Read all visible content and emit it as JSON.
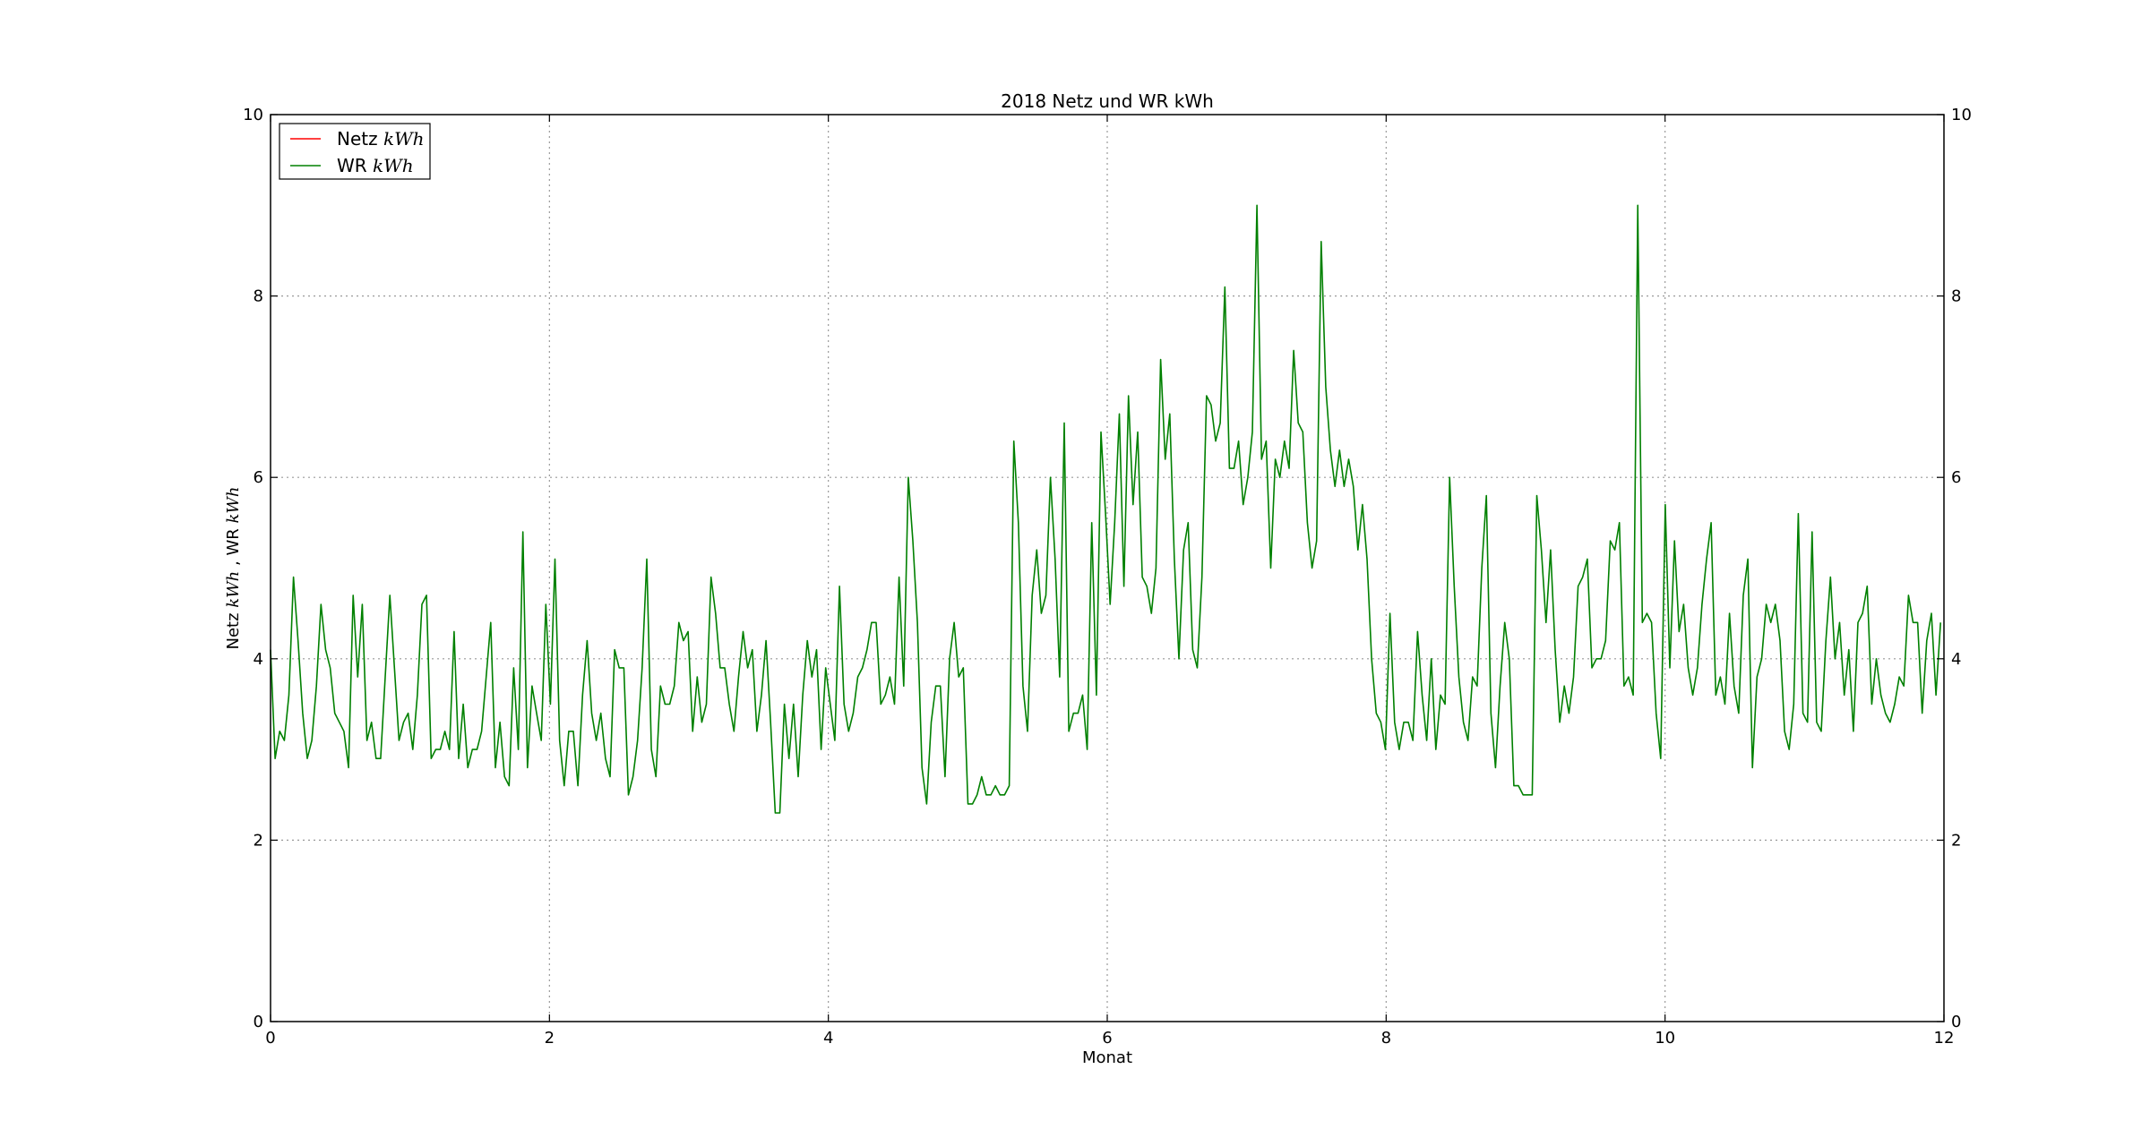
{
  "chart_data": {
    "type": "line",
    "title": "2018 Netz und WR kWh",
    "xlabel": "Monat",
    "ylabel": "Netz kWh , WR kWh",
    "ylabel_parts": {
      "a": "Netz ",
      "am": "kWh",
      "b": " , WR ",
      "bm": "kWh"
    },
    "xlim": [
      0,
      12
    ],
    "ylim": [
      0,
      10
    ],
    "xticks": [
      "0",
      "2",
      "4",
      "6",
      "8",
      "10",
      "12"
    ],
    "yticks": [
      "0",
      "2",
      "4",
      "6",
      "8",
      "10"
    ],
    "grid": true,
    "legend_position": "top-left",
    "series": [
      {
        "name": "Netz kWh",
        "label_text": "Netz ",
        "label_math": "kWh",
        "color": "#ff0000",
        "x": [],
        "y": []
      },
      {
        "name": "WR kWh",
        "label_text": "WR ",
        "label_math": "kWh",
        "color": "#008000",
        "x_start": 0,
        "x_step": 0.0329,
        "y": [
          4.1,
          2.9,
          3.2,
          3.1,
          3.6,
          4.9,
          4.2,
          3.4,
          2.9,
          3.1,
          3.7,
          4.6,
          4.1,
          3.9,
          3.4,
          3.3,
          3.2,
          2.8,
          4.7,
          3.8,
          4.6,
          3.1,
          3.3,
          2.9,
          2.9,
          3.8,
          4.7,
          3.9,
          3.1,
          3.3,
          3.4,
          3.0,
          3.6,
          4.6,
          4.7,
          2.9,
          3.0,
          3.0,
          3.2,
          3.0,
          4.3,
          2.9,
          3.5,
          2.8,
          3.0,
          3.0,
          3.2,
          3.8,
          4.4,
          2.8,
          3.3,
          2.7,
          2.6,
          3.9,
          3.0,
          5.4,
          2.8,
          3.7,
          3.4,
          3.1,
          4.6,
          3.5,
          5.1,
          3.1,
          2.6,
          3.2,
          3.2,
          2.6,
          3.6,
          4.2,
          3.4,
          3.1,
          3.4,
          2.9,
          2.7,
          4.1,
          3.9,
          3.9,
          2.5,
          2.7,
          3.1,
          3.9,
          5.1,
          3.0,
          2.7,
          3.7,
          3.5,
          3.5,
          3.7,
          4.4,
          4.2,
          4.3,
          3.2,
          3.8,
          3.3,
          3.5,
          4.9,
          4.5,
          3.9,
          3.9,
          3.5,
          3.2,
          3.8,
          4.3,
          3.9,
          4.1,
          3.2,
          3.6,
          4.2,
          3.3,
          2.3,
          2.3,
          3.5,
          2.9,
          3.5,
          2.7,
          3.6,
          4.2,
          3.8,
          4.1,
          3.0,
          3.9,
          3.5,
          3.1,
          4.8,
          3.5,
          3.2,
          3.4,
          3.8,
          3.9,
          4.1,
          4.4,
          4.4,
          3.5,
          3.6,
          3.8,
          3.5,
          4.9,
          3.7,
          6.0,
          5.3,
          4.4,
          2.8,
          2.4,
          3.3,
          3.7,
          3.7,
          2.7,
          4.0,
          4.4,
          3.8,
          3.9,
          2.4,
          2.4,
          2.5,
          2.7,
          2.5,
          2.5,
          2.6,
          2.5,
          2.5,
          2.6,
          6.4,
          5.5,
          3.7,
          3.2,
          4.7,
          5.2,
          4.5,
          4.7,
          6.0,
          5.1,
          3.8,
          6.6,
          3.2,
          3.4,
          3.4,
          3.6,
          3.0,
          5.5,
          3.6,
          6.5,
          5.6,
          4.6,
          5.5,
          6.7,
          4.8,
          6.9,
          5.7,
          6.5,
          4.9,
          4.8,
          4.5,
          5.0,
          7.3,
          6.2,
          6.7,
          5.1,
          4.0,
          5.2,
          5.5,
          4.1,
          3.9,
          4.9,
          6.9,
          6.8,
          6.4,
          6.6,
          8.1,
          6.1,
          6.1,
          6.4,
          5.7,
          6.0,
          6.5,
          9.0,
          6.2,
          6.4,
          5.0,
          6.2,
          6.0,
          6.4,
          6.1,
          7.4,
          6.6,
          6.5,
          5.5,
          5.0,
          5.3,
          8.6,
          7.0,
          6.3,
          5.9,
          6.3,
          5.9,
          6.2,
          5.9,
          5.2,
          5.7,
          5.1,
          4.0,
          3.4,
          3.3,
          3.0,
          4.5,
          3.3,
          3.0,
          3.3,
          3.3,
          3.1,
          4.3,
          3.6,
          3.1,
          4.0,
          3.0,
          3.6,
          3.5,
          6.0,
          4.8,
          3.8,
          3.3,
          3.1,
          3.8,
          3.7,
          5.0,
          5.8,
          3.4,
          2.8,
          3.7,
          4.4,
          4.0,
          2.6,
          2.6,
          2.5,
          2.5,
          2.5,
          5.8,
          5.2,
          4.4,
          5.2,
          4.1,
          3.3,
          3.7,
          3.4,
          3.8,
          4.8,
          4.9,
          5.1,
          3.9,
          4.0,
          4.0,
          4.2,
          5.3,
          5.2,
          5.5,
          3.7,
          3.8,
          3.6,
          9.0,
          4.4,
          4.5,
          4.4,
          3.4,
          2.9,
          5.7,
          3.9,
          5.3,
          4.3,
          4.6,
          3.9,
          3.6,
          3.9,
          4.6,
          5.1,
          5.5,
          3.6,
          3.8,
          3.5,
          4.5,
          3.7,
          3.4,
          4.7,
          5.1,
          2.8,
          3.8,
          4.0,
          4.6,
          4.4,
          4.6,
          4.2,
          3.2,
          3.0,
          3.5,
          5.6,
          3.4,
          3.3,
          5.4,
          3.3,
          3.2,
          4.2,
          4.9,
          4.0,
          4.4,
          3.6,
          4.1,
          3.2,
          4.4,
          4.5,
          4.8,
          3.5,
          4.0,
          3.6,
          3.4,
          3.3,
          3.5,
          3.8,
          3.7,
          4.7,
          4.4,
          4.4,
          3.4,
          4.2,
          4.5,
          3.6,
          4.4
        ]
      }
    ]
  }
}
